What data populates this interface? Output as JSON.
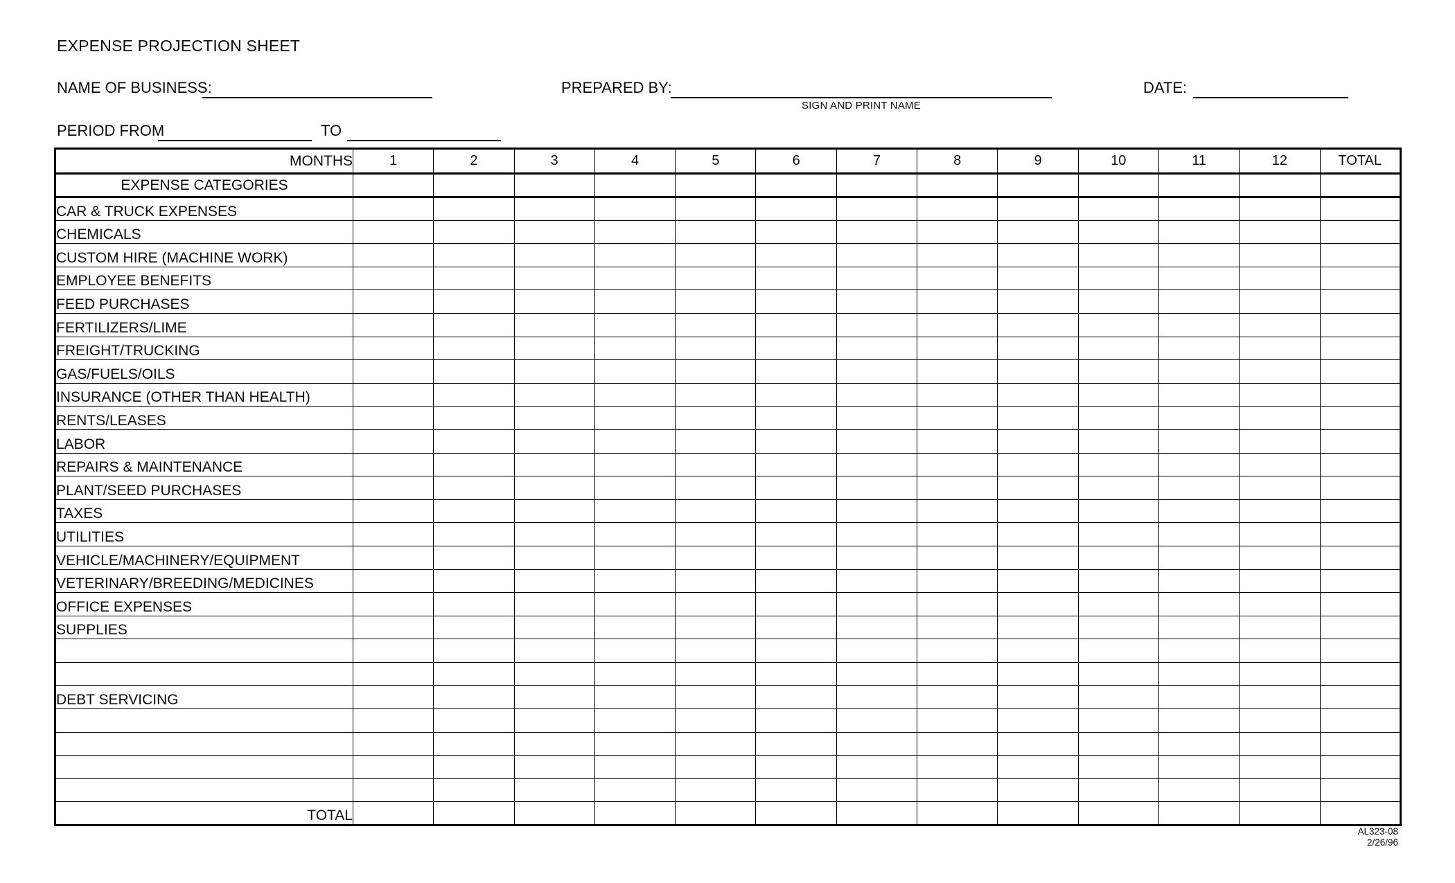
{
  "document": {
    "title": "EXPENSE PROJECTION SHEET",
    "fields": {
      "name_of_business_label": "NAME OF BUSINESS:",
      "name_of_business_value": "",
      "prepared_by_label": "PREPARED BY:",
      "prepared_by_value": "",
      "prepared_by_hint": "SIGN AND PRINT NAME",
      "date_label": "DATE:",
      "date_value": "",
      "period_from_label": "PERIOD FROM",
      "period_from_value": "",
      "to_label": "TO",
      "period_to_value": ""
    },
    "table": {
      "months_label": "MONTHS",
      "categories_header": "EXPENSE CATEGORIES",
      "month_columns": [
        "1",
        "2",
        "3",
        "4",
        "5",
        "6",
        "7",
        "8",
        "9",
        "10",
        "11",
        "12"
      ],
      "total_column_label": "TOTAL",
      "rows": [
        "CAR & TRUCK EXPENSES",
        "CHEMICALS",
        "CUSTOM HIRE (MACHINE WORK)",
        "EMPLOYEE BENEFITS",
        "FEED PURCHASES",
        "FERTILIZERS/LIME",
        "FREIGHT/TRUCKING",
        "GAS/FUELS/OILS",
        "INSURANCE (OTHER THAN HEALTH)",
        "RENTS/LEASES",
        "LABOR",
        "REPAIRS & MAINTENANCE",
        "PLANT/SEED PURCHASES",
        "TAXES",
        "UTILITIES",
        "VEHICLE/MACHINERY/EQUIPMENT",
        "VETERINARY/BREEDING/MEDICINES",
        "OFFICE EXPENSES",
        "SUPPLIES",
        "",
        "",
        "DEBT SERVICING",
        "",
        "",
        "",
        ""
      ],
      "total_row_label": "TOTAL"
    },
    "footer": {
      "form_code": "AL323-08",
      "form_date": "2/26/96"
    }
  }
}
